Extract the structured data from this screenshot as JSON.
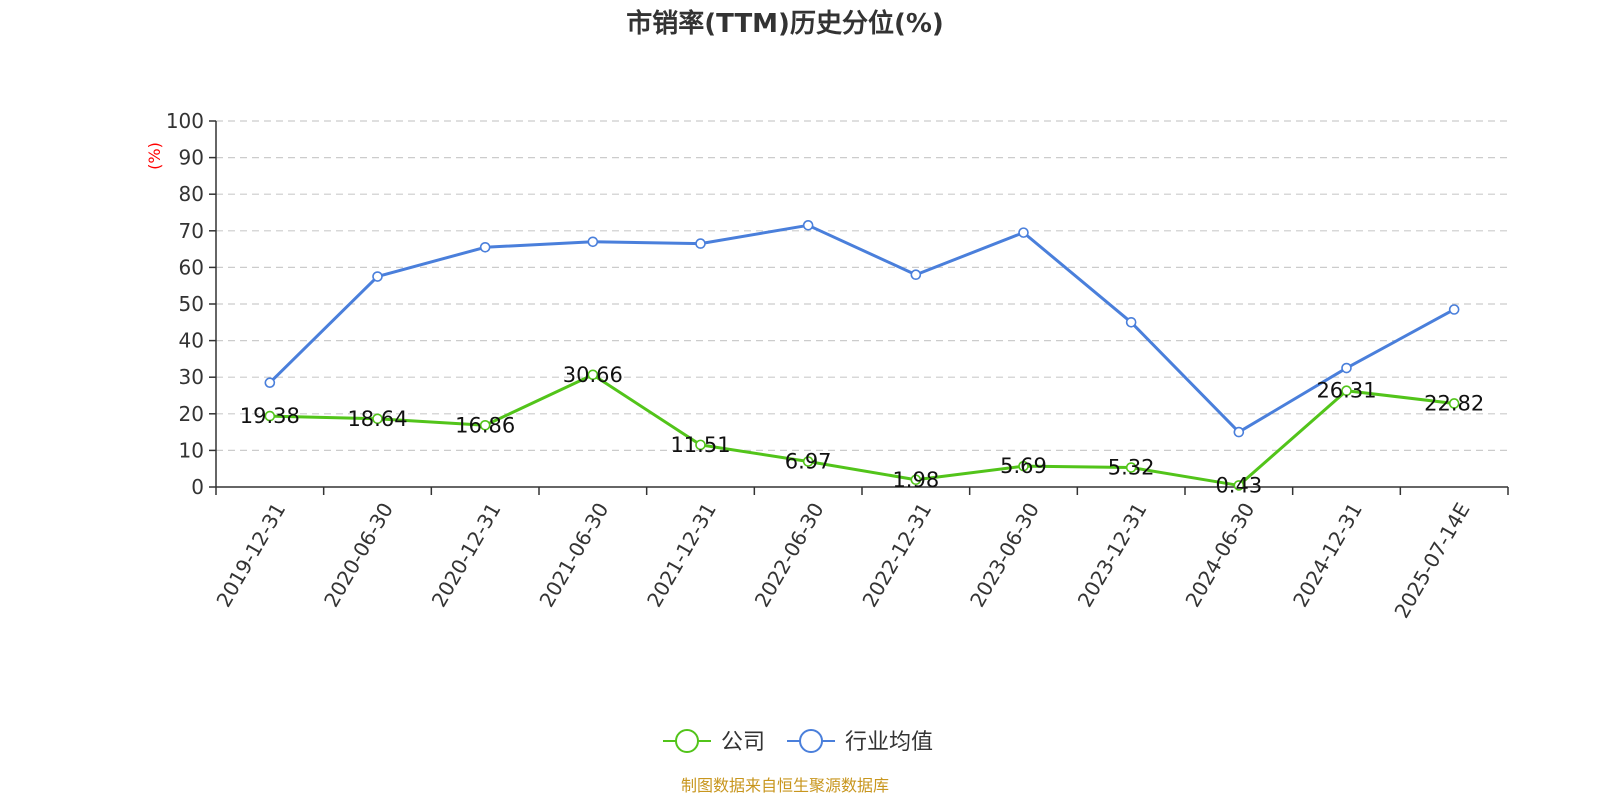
{
  "chart_data": {
    "type": "line",
    "title": "市销率(TTM)历史分位(%)",
    "ylabel": "(%)",
    "ylim": [
      0,
      100
    ],
    "yticks": [
      0,
      10,
      20,
      30,
      40,
      50,
      60,
      70,
      80,
      90,
      100
    ],
    "grid": true,
    "legend_position": "bottom",
    "categories": [
      "2019-12-31",
      "2020-06-30",
      "2020-12-31",
      "2021-06-30",
      "2021-12-31",
      "2022-06-30",
      "2022-12-31",
      "2023-06-30",
      "2023-12-31",
      "2024-06-30",
      "2024-12-31",
      "2025-07-14E"
    ],
    "series": [
      {
        "name": "公司",
        "color": "#52c41a",
        "values": [
          19.38,
          18.64,
          16.86,
          30.66,
          11.51,
          6.97,
          1.98,
          5.69,
          5.32,
          0.43,
          26.31,
          22.82
        ],
        "labels": [
          "19.38",
          "18.64",
          "16.86",
          "30.66",
          "11.51",
          "6.97",
          "1.98",
          "5.69",
          "5.32",
          "0.43",
          "26.31",
          "22.82"
        ]
      },
      {
        "name": "行业均值",
        "color": "#4a7fdb",
        "values": [
          28.5,
          57.5,
          65.5,
          67.0,
          66.5,
          71.5,
          58.0,
          69.5,
          45.0,
          15.0,
          32.5,
          48.5
        ]
      }
    ],
    "source": "制图数据来自恒生聚源数据库",
    "colors": {
      "axis": "#333333",
      "grid": "#cccccc",
      "ylabel": "#ff0000",
      "source": "#c8961e"
    }
  }
}
